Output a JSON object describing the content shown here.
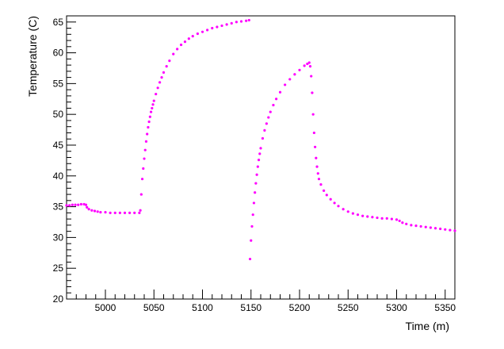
{
  "chart_data": {
    "type": "scatter",
    "title": "",
    "xlabel": "Time (m)",
    "ylabel": "Temperature (C)",
    "xlim": [
      4960,
      5360
    ],
    "ylim": [
      20,
      66
    ],
    "x_ticks": [
      5000,
      5050,
      5100,
      5150,
      5200,
      5250,
      5300,
      5350
    ],
    "y_ticks": [
      20,
      25,
      30,
      35,
      40,
      45,
      50,
      55,
      60,
      65
    ],
    "x_tick_labels": [
      "5000",
      "5050",
      "5100",
      "5150",
      "5200",
      "5250",
      "5300",
      "5350"
    ],
    "y_tick_labels": [
      "20",
      "25",
      "30",
      "35",
      "40",
      "45",
      "50",
      "55",
      "60",
      "65"
    ],
    "grid": false,
    "marker_color": "#ff00ff",
    "series": [
      {
        "x": [
          4960,
          4963,
          4966,
          4969,
          4972,
          4975,
          4978,
          4980,
          4981,
          4983,
          4986,
          4989,
          4992,
          4995,
          5000,
          5005,
          5010,
          5015,
          5020,
          5025,
          5030,
          5035,
          5036,
          5037,
          5038,
          5039,
          5040,
          5041,
          5042,
          5043,
          5044,
          5045,
          5046,
          5047,
          5048,
          5049,
          5050,
          5052,
          5054,
          5056,
          5058,
          5060,
          5063,
          5066,
          5070,
          5074,
          5078,
          5082,
          5086,
          5090,
          5095,
          5100,
          5105,
          5110,
          5115,
          5120,
          5125,
          5130,
          5135,
          5140,
          5145,
          5148,
          5149,
          5150,
          5151,
          5152,
          5153,
          5154,
          5155,
          5156,
          5157,
          5158,
          5159,
          5160,
          5162,
          5164,
          5166,
          5168,
          5170,
          5173,
          5176,
          5180,
          5185,
          5190,
          5195,
          5200,
          5205,
          5208,
          5210,
          5211,
          5212,
          5213,
          5214,
          5215,
          5216,
          5217,
          5218,
          5219,
          5220,
          5222,
          5225,
          5228,
          5232,
          5236,
          5240,
          5245,
          5250,
          5255,
          5260,
          5265,
          5270,
          5275,
          5280,
          5285,
          5290,
          5295,
          5300,
          5303,
          5306,
          5310,
          5315,
          5320,
          5325,
          5330,
          5335,
          5340,
          5345,
          5350,
          5355,
          5360
        ],
        "y": [
          35.2,
          35.2,
          35.3,
          35.3,
          35.3,
          35.4,
          35.4,
          35.3,
          34.9,
          34.6,
          34.4,
          34.3,
          34.2,
          34.1,
          34.1,
          34.0,
          34.0,
          34.0,
          34.0,
          34.0,
          34.0,
          34.0,
          34.4,
          37.0,
          39.5,
          41.2,
          42.8,
          44.2,
          45.6,
          46.8,
          47.9,
          48.8,
          49.6,
          50.4,
          51.0,
          51.6,
          52.2,
          53.3,
          54.3,
          55.2,
          56.0,
          56.8,
          57.8,
          58.7,
          59.8,
          60.6,
          61.3,
          61.8,
          62.3,
          62.7,
          63.1,
          63.4,
          63.7,
          64.0,
          64.2,
          64.4,
          64.6,
          64.8,
          65.0,
          65.1,
          65.2,
          65.3,
          26.5,
          29.5,
          31.8,
          33.7,
          35.6,
          37.3,
          38.8,
          40.2,
          41.5,
          42.6,
          43.6,
          44.5,
          46.1,
          47.4,
          48.5,
          49.5,
          50.4,
          51.5,
          52.5,
          53.6,
          54.8,
          55.7,
          56.5,
          57.2,
          57.9,
          58.2,
          58.4,
          57.8,
          56.2,
          53.5,
          50.0,
          47.0,
          44.7,
          42.9,
          41.5,
          40.4,
          39.5,
          38.6,
          37.6,
          36.9,
          36.2,
          35.6,
          35.1,
          34.6,
          34.2,
          33.9,
          33.7,
          33.5,
          33.4,
          33.3,
          33.2,
          33.1,
          33.1,
          33.0,
          32.9,
          32.7,
          32.4,
          32.2,
          32.0,
          31.9,
          31.8,
          31.7,
          31.6,
          31.5,
          31.4,
          31.3,
          31.2,
          31.1
        ]
      }
    ]
  }
}
